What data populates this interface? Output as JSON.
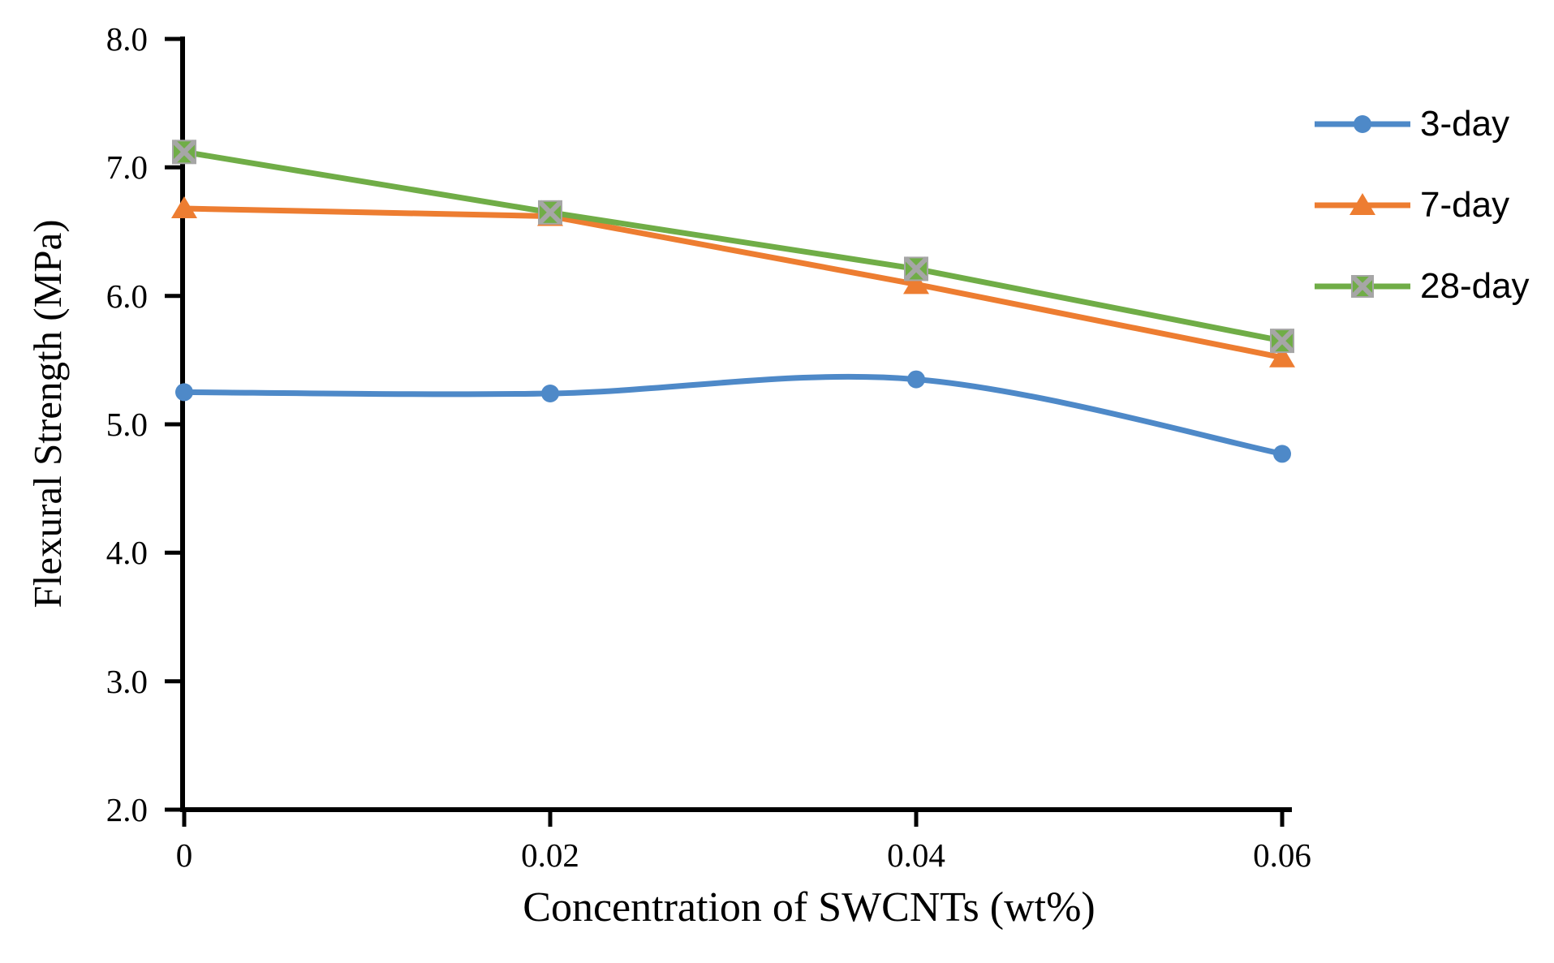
{
  "chart_data": {
    "type": "line",
    "title": "",
    "xlabel": "Concentration of SWCNTs (wt%)",
    "ylabel": "Flexural Strength (MPa)",
    "x": [
      0,
      0.02,
      0.04,
      0.06
    ],
    "x_tick_labels": [
      "0",
      "0.02",
      "0.04",
      "0.06"
    ],
    "y_ticks": [
      2.0,
      3.0,
      4.0,
      5.0,
      6.0,
      7.0,
      8.0
    ],
    "y_tick_labels": [
      "2.0",
      "3.0",
      "4.0",
      "5.0",
      "6.0",
      "7.0",
      "8.0"
    ],
    "xlim": [
      0,
      0.06
    ],
    "ylim": [
      2.0,
      8.0
    ],
    "grid": false,
    "legend_position": "right",
    "axis_color": "#000000",
    "series": [
      {
        "name": "3-day",
        "color": "#4E89C8",
        "marker": "circle",
        "smooth": true,
        "values": [
          5.25,
          5.24,
          5.35,
          4.77
        ]
      },
      {
        "name": "7-day",
        "color": "#ED7D31",
        "marker": "triangle",
        "smooth": false,
        "values": [
          6.68,
          6.62,
          6.09,
          5.52
        ]
      },
      {
        "name": "28-day",
        "color": "#70AD47",
        "marker": "square-x",
        "marker_accent": "#A6A6A6",
        "smooth": false,
        "values": [
          7.12,
          6.65,
          6.21,
          5.65
        ]
      }
    ]
  }
}
